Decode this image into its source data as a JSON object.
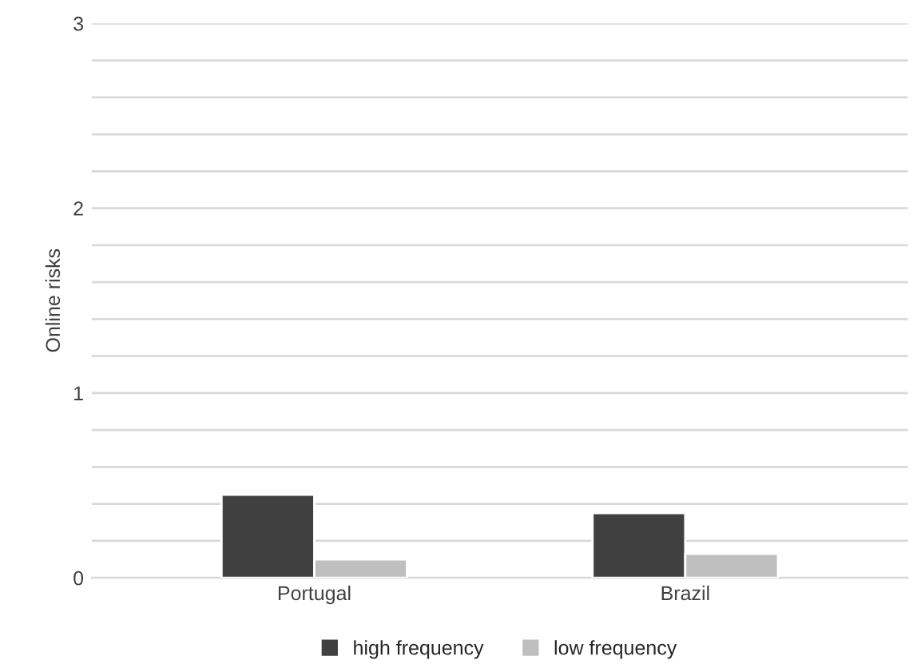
{
  "chart_data": {
    "type": "bar",
    "ylabel": "Online risks",
    "categories": [
      "Portugal",
      "Brazil"
    ],
    "series": [
      {
        "name": "high frequency",
        "color": "#404040",
        "values": [
          0.45,
          0.35
        ]
      },
      {
        "name": "low frequency",
        "color": "#bfbfbf",
        "values": [
          0.1,
          0.13
        ]
      }
    ],
    "ylim": [
      0,
      3
    ],
    "yticks": [
      0,
      {
        "value": 0.2,
        "label": null
      },
      {
        "value": 0.4,
        "label": null
      },
      {
        "value": 0.6,
        "label": null
      },
      {
        "value": 0.8,
        "label": null
      },
      1,
      {
        "value": 1.2,
        "label": null
      },
      {
        "value": 1.4,
        "label": null
      },
      {
        "value": 1.6,
        "label": null
      },
      {
        "value": 1.8,
        "label": null
      },
      2,
      {
        "value": 2.2,
        "label": null
      },
      {
        "value": 2.4,
        "label": null
      },
      {
        "value": 2.6,
        "label": null
      },
      {
        "value": 2.8,
        "label": null
      },
      3
    ],
    "grid": "y",
    "legend": "bottom"
  }
}
